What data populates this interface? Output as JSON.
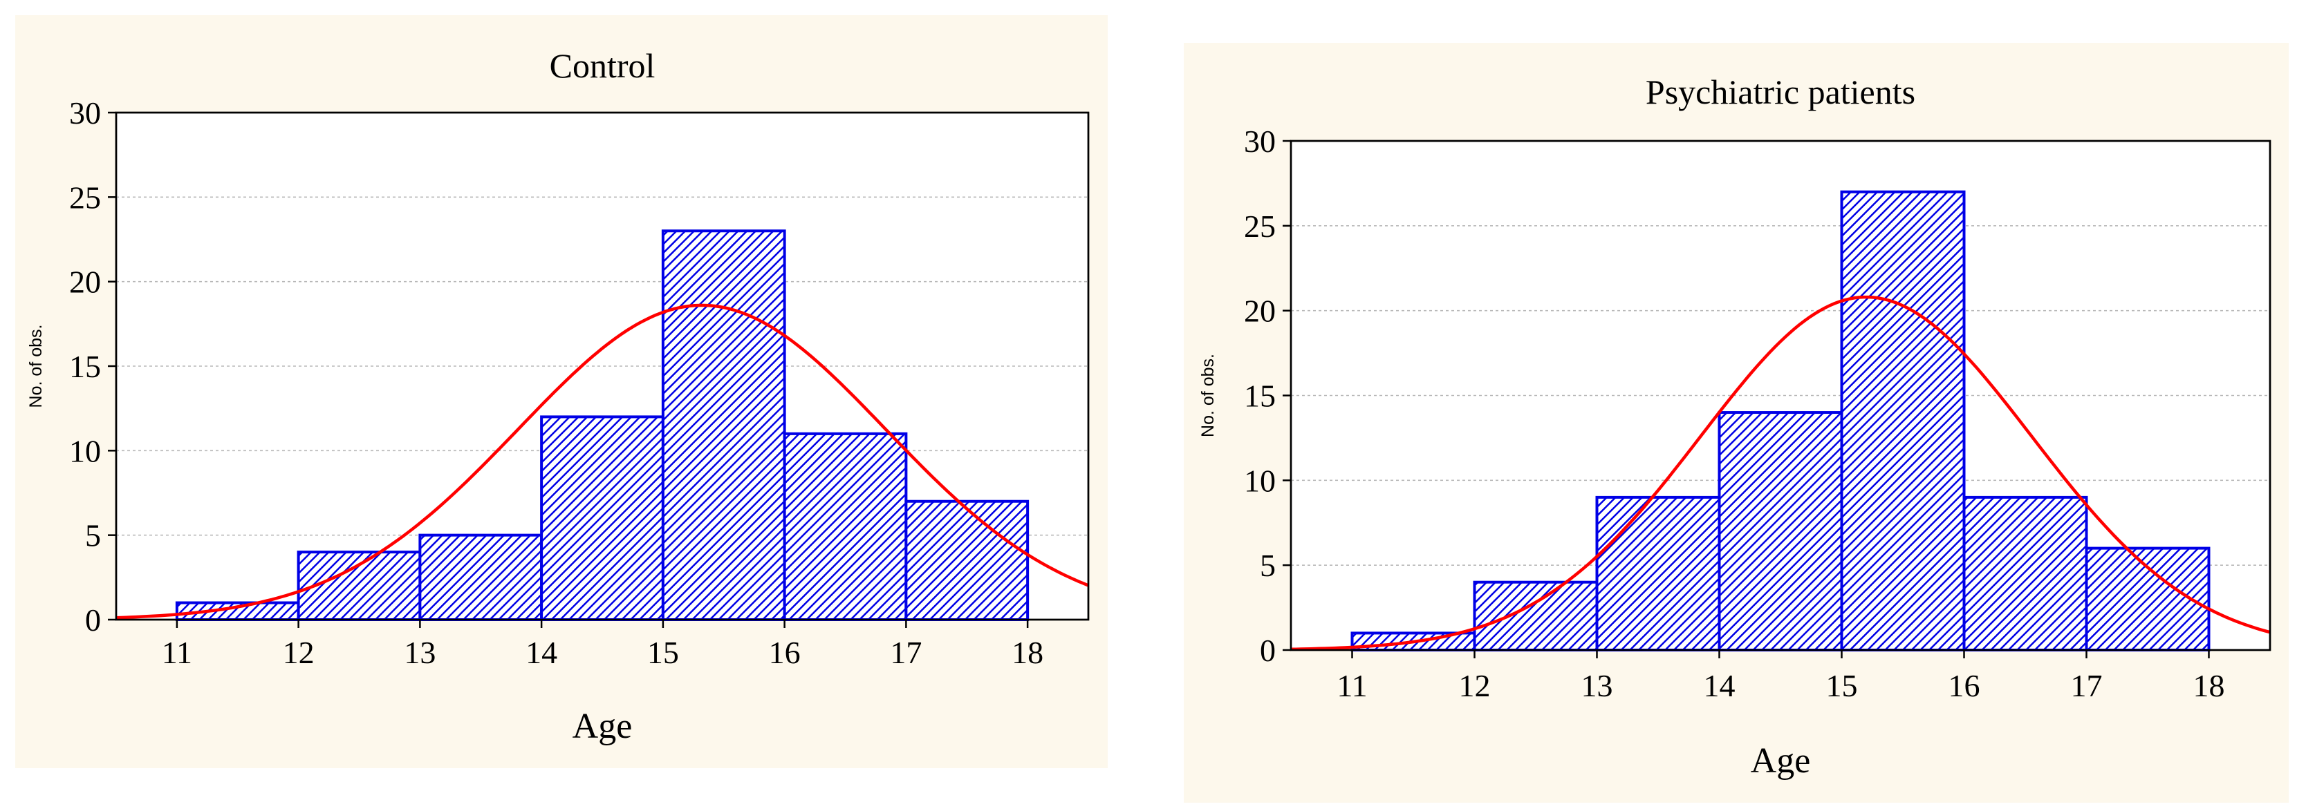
{
  "chart_data": [
    {
      "type": "bar",
      "title": "Control",
      "xlabel": "Age",
      "ylabel": "No. of obs.",
      "bin_edges": [
        11,
        12,
        13,
        14,
        15,
        16,
        17,
        18
      ],
      "values": [
        1,
        4,
        5,
        12,
        23,
        11,
        7
      ],
      "xticks": [
        11,
        12,
        13,
        14,
        15,
        16,
        17,
        18
      ],
      "yticks": [
        0,
        5,
        10,
        15,
        20,
        25,
        30
      ],
      "xlim": [
        10.5,
        18.5
      ],
      "ylim": [
        0,
        30
      ],
      "grid": "horizontal dashed",
      "normal_fit": {
        "mean": 15.32,
        "sd": 1.51,
        "peak": 18.6
      },
      "colors": {
        "bar_edge": "#0000e6",
        "bar_hatch": "#0000e6",
        "curve": "#ff0000",
        "background": "#fdf8ec"
      }
    },
    {
      "type": "bar",
      "title": "Psychiatric patients",
      "xlabel": "Age",
      "ylabel": "No. of obs.",
      "bin_edges": [
        11,
        12,
        13,
        14,
        15,
        16,
        17,
        18
      ],
      "values": [
        1,
        4,
        9,
        14,
        27,
        9,
        6
      ],
      "xticks": [
        11,
        12,
        13,
        14,
        15,
        16,
        17,
        18
      ],
      "yticks": [
        0,
        5,
        10,
        15,
        20,
        25,
        30
      ],
      "xlim": [
        10.5,
        18.5
      ],
      "ylim": [
        0,
        30
      ],
      "grid": "horizontal dashed",
      "normal_fit": {
        "mean": 15.2,
        "sd": 1.35,
        "peak": 20.8
      },
      "colors": {
        "bar_edge": "#0000e6",
        "bar_hatch": "#0000e6",
        "curve": "#ff0000",
        "background": "#fdf8ec"
      }
    }
  ]
}
